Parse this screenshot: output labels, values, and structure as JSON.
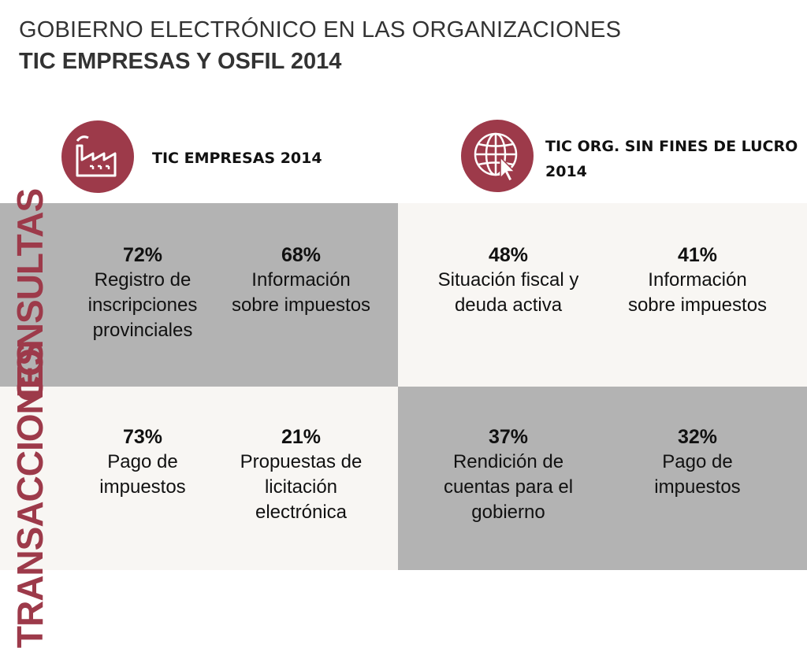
{
  "title": {
    "line1": "GOBIERNO ELECTRÓNICO EN LAS ORGANIZACIONES",
    "line2": "TIC EMPRESAS Y OSFIL 2014"
  },
  "columns": {
    "empresas": {
      "label": "TIC EMPRESAS 2014",
      "icon": "factory-icon"
    },
    "osfil": {
      "label_line1": "TIC ORG. SIN FINES DE LUCRO",
      "label_line2": "2014",
      "icon": "globe-cursor-icon"
    }
  },
  "rows": {
    "consultas": "CONSULTAS",
    "transacciones": "TRANSACCIONES"
  },
  "stats": {
    "consultas": [
      {
        "pct": "72%",
        "l1": "Registro de",
        "l2": "inscripciones",
        "l3": "provinciales"
      },
      {
        "pct": "68%",
        "l1": "Información",
        "l2": "sobre impuestos",
        "l3": ""
      },
      {
        "pct": "48%",
        "l1": "Situación fiscal y",
        "l2": "deuda activa",
        "l3": ""
      },
      {
        "pct": "41%",
        "l1": "Información",
        "l2": "sobre impuestos",
        "l3": ""
      }
    ],
    "transacciones": [
      {
        "pct": "73%",
        "l1": "Pago de",
        "l2": "impuestos",
        "l3": ""
      },
      {
        "pct": "21%",
        "l1": "Propuestas de",
        "l2": "licitación",
        "l3": "electrónica"
      },
      {
        "pct": "37%",
        "l1": "Rendición de",
        "l2": "cuentas para el",
        "l3": "gobierno"
      },
      {
        "pct": "32%",
        "l1": "Pago de",
        "l2": "impuestos",
        "l3": ""
      }
    ]
  },
  "colors": {
    "accent": "#9d3a4a",
    "grey": "#b3b3b3",
    "light": "#f8f6f3"
  }
}
